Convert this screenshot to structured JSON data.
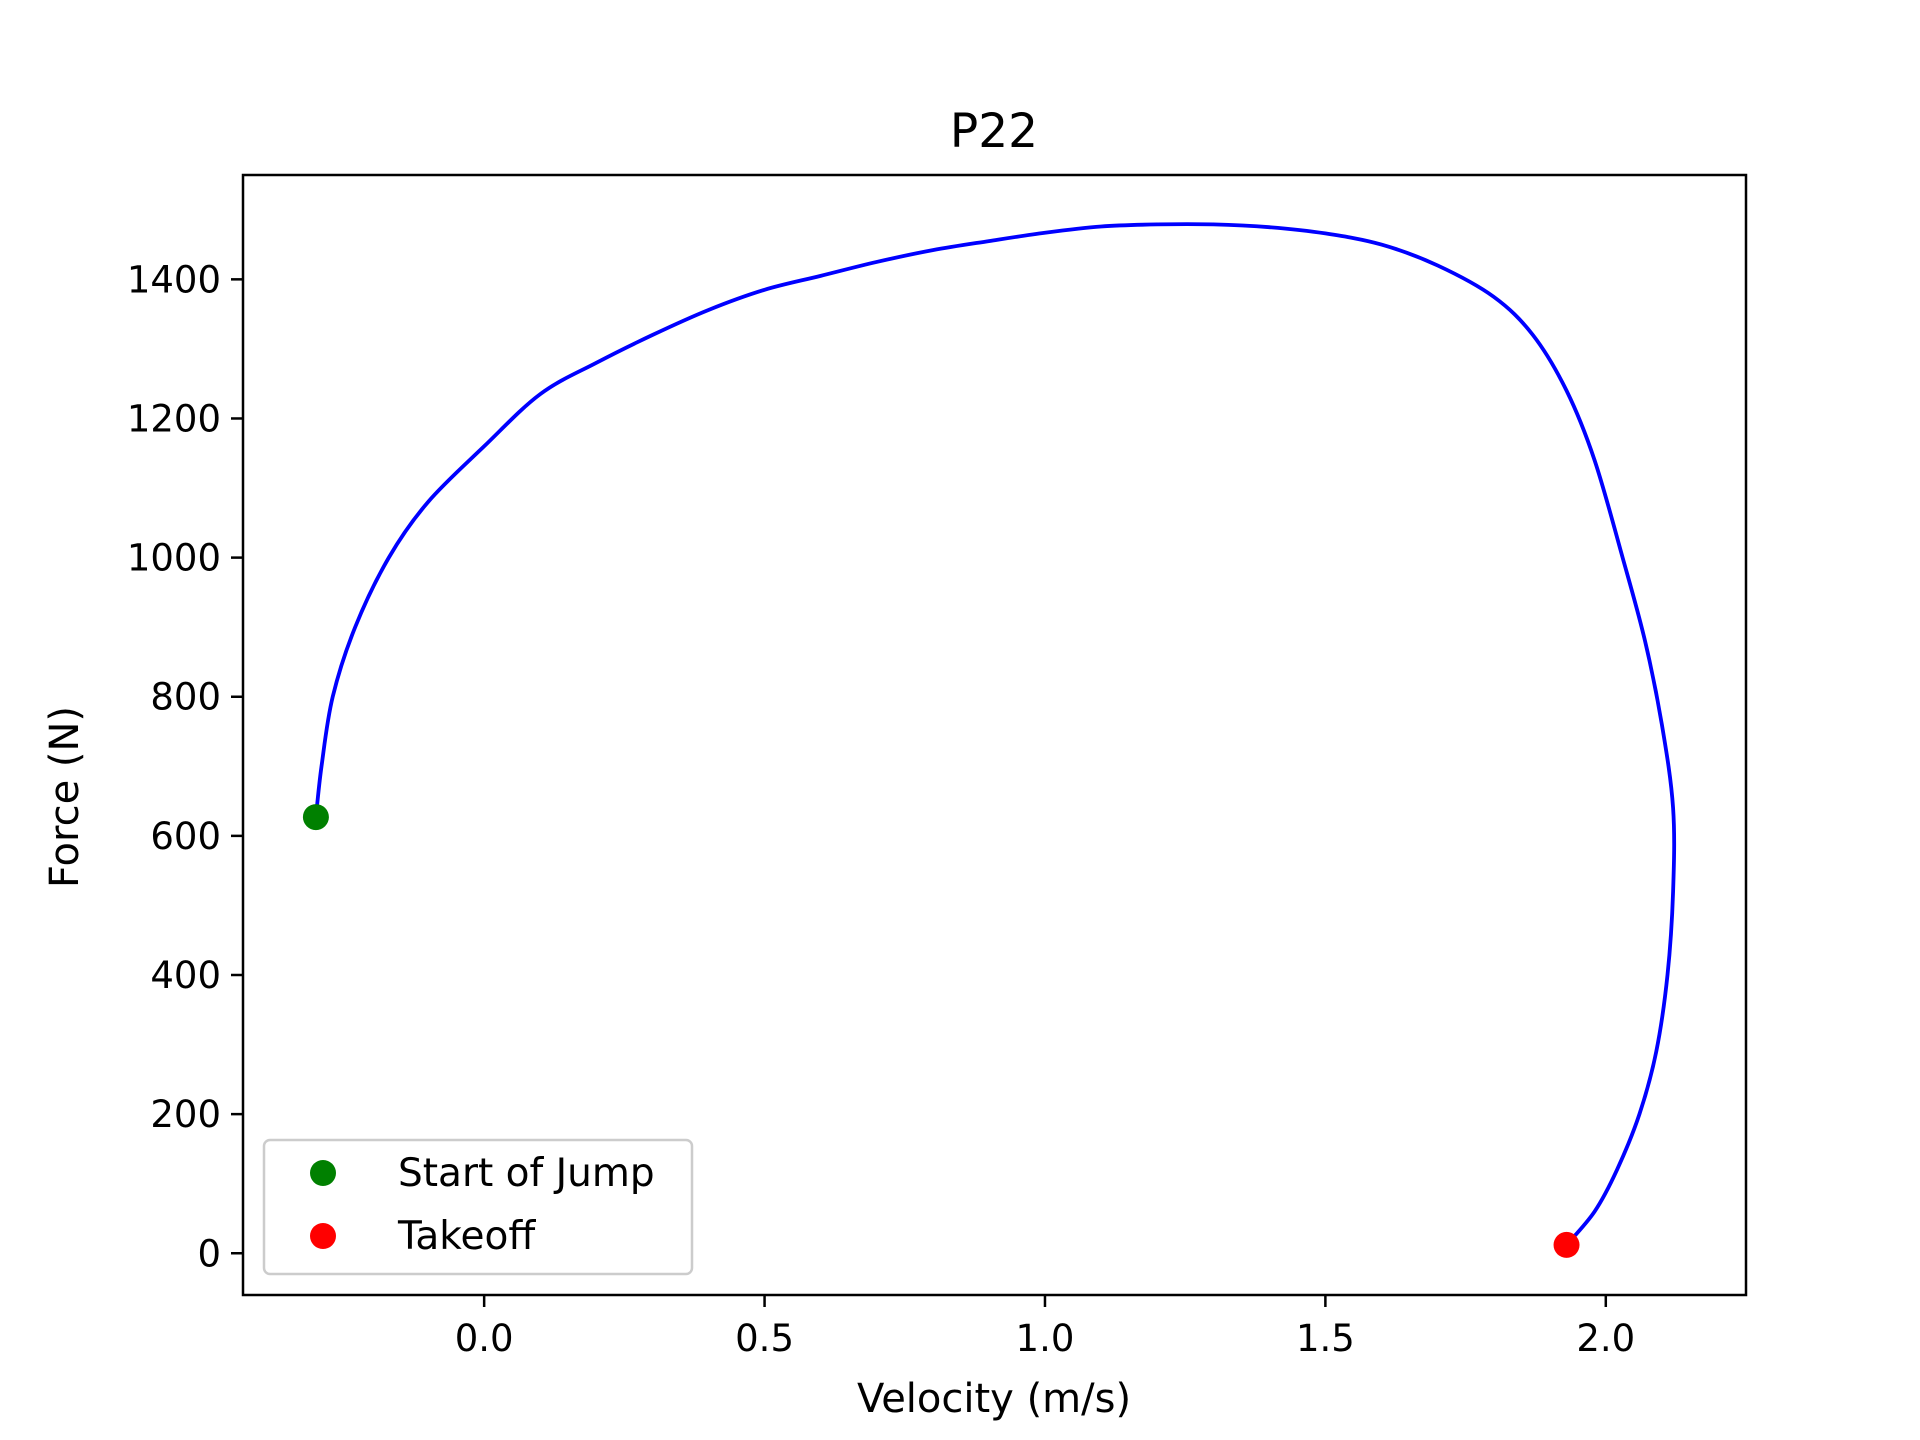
{
  "chart_data": {
    "type": "line",
    "title": "P22",
    "xlabel": "Velocity (m/s)",
    "ylabel": "Force (N)",
    "xlim": [
      -0.43,
      2.25
    ],
    "ylim": [
      -60,
      1550
    ],
    "xticks": [
      0.0,
      0.5,
      1.0,
      1.5,
      2.0
    ],
    "xtick_labels": [
      "0.0",
      "0.5",
      "1.0",
      "1.5",
      "2.0"
    ],
    "yticks": [
      0,
      200,
      400,
      600,
      800,
      1000,
      1200,
      1400
    ],
    "ytick_labels": [
      "0",
      "200",
      "400",
      "600",
      "800",
      "1000",
      "1200",
      "1400"
    ],
    "grid": false,
    "legend_position": "lower-left",
    "series": [
      {
        "type": "line",
        "color": "#0000ff",
        "points": [
          [
            -0.3,
            627
          ],
          [
            -0.29,
            700
          ],
          [
            -0.27,
            800
          ],
          [
            -0.23,
            900
          ],
          [
            -0.17,
            1000
          ],
          [
            -0.1,
            1080
          ],
          [
            0.0,
            1160
          ],
          [
            0.1,
            1235
          ],
          [
            0.2,
            1280
          ],
          [
            0.3,
            1320
          ],
          [
            0.4,
            1356
          ],
          [
            0.5,
            1385
          ],
          [
            0.6,
            1405
          ],
          [
            0.7,
            1425
          ],
          [
            0.8,
            1442
          ],
          [
            0.9,
            1455
          ],
          [
            1.0,
            1467
          ],
          [
            1.1,
            1476
          ],
          [
            1.2,
            1479
          ],
          [
            1.3,
            1479
          ],
          [
            1.4,
            1475
          ],
          [
            1.5,
            1466
          ],
          [
            1.6,
            1450
          ],
          [
            1.7,
            1420
          ],
          [
            1.8,
            1375
          ],
          [
            1.87,
            1320
          ],
          [
            1.93,
            1240
          ],
          [
            1.98,
            1140
          ],
          [
            2.03,
            1000
          ],
          [
            2.07,
            880
          ],
          [
            2.1,
            760
          ],
          [
            2.12,
            640
          ],
          [
            2.12,
            520
          ],
          [
            2.11,
            400
          ],
          [
            2.09,
            290
          ],
          [
            2.06,
            200
          ],
          [
            2.02,
            120
          ],
          [
            1.98,
            60
          ],
          [
            1.93,
            12
          ]
        ]
      },
      {
        "type": "scatter",
        "name": "Start of Jump",
        "color": "#008000",
        "points": [
          [
            -0.3,
            627
          ]
        ]
      },
      {
        "type": "scatter",
        "name": "Takeoff",
        "color": "#ff0000",
        "points": [
          [
            1.93,
            12
          ]
        ]
      }
    ]
  }
}
